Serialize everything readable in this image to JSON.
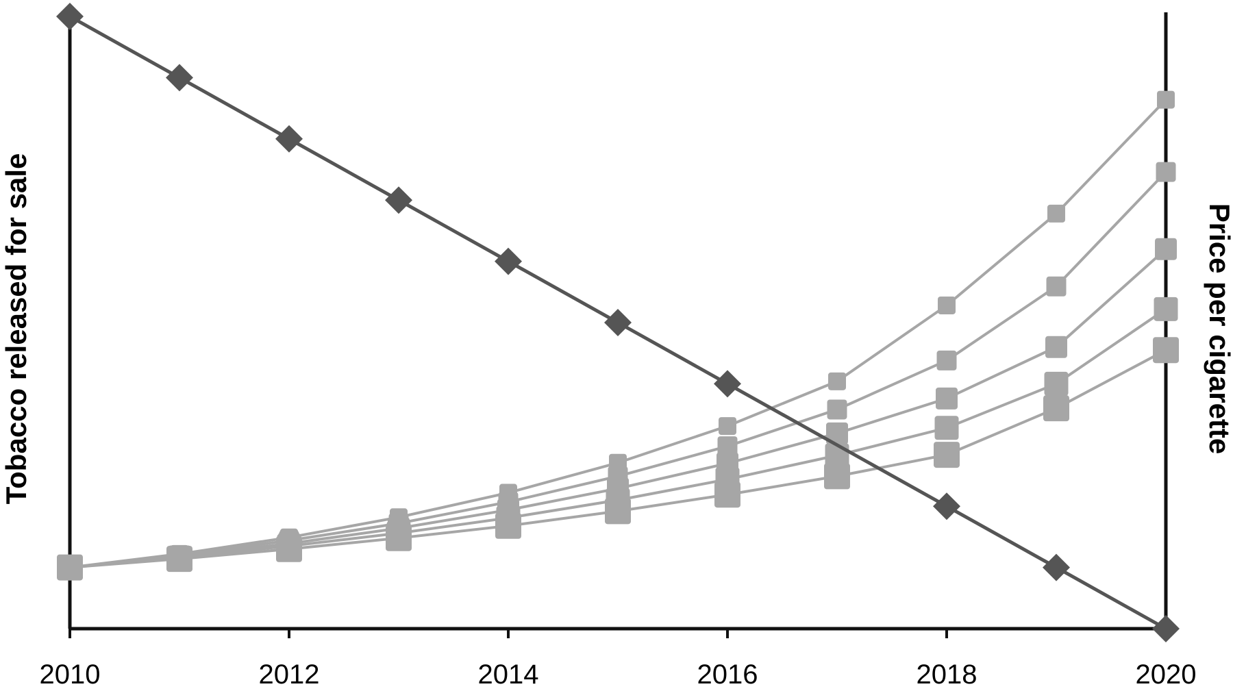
{
  "chart_data": {
    "type": "line",
    "title": "",
    "xlabel": "",
    "ylabel": "Tobacco released for sale",
    "y2label": "Price per cigarette",
    "xlim": [
      2010,
      2020
    ],
    "x_ticks": [
      2010,
      2012,
      2014,
      2016,
      2018,
      2020
    ],
    "grid": false,
    "legend": "none",
    "colors": {
      "tobacco": "#555555",
      "price": "#a6a6a6",
      "axis": "#111111"
    },
    "tobacco_series": {
      "marker": "diamond",
      "axis": "left",
      "ylim": [
        0,
        100
      ],
      "x": [
        2010,
        2011,
        2012,
        2013,
        2014,
        2015,
        2016,
        2018,
        2019,
        2020
      ],
      "values": [
        100,
        90,
        80,
        70,
        60,
        50,
        40,
        20,
        10,
        0
      ]
    },
    "price_series": [
      {
        "marker": "square",
        "axis": "right",
        "ylim": [
          0,
          100
        ],
        "x": [
          2010,
          2011,
          2012,
          2013,
          2014,
          2015,
          2016,
          2017,
          2018,
          2019,
          2020
        ],
        "values": [
          10,
          12.2,
          14.9,
          18.2,
          22.2,
          27.1,
          33.1,
          40.4,
          52.8,
          67.8,
          86.4
        ]
      },
      {
        "marker": "square",
        "axis": "right",
        "ylim": [
          0,
          100
        ],
        "x": [
          2010,
          2011,
          2012,
          2013,
          2014,
          2015,
          2016,
          2017,
          2018,
          2019,
          2020
        ],
        "values": [
          10,
          12,
          14.4,
          17.2,
          20.7,
          24.9,
          29.8,
          35.8,
          43.8,
          55.9,
          74.6
        ]
      },
      {
        "marker": "square",
        "axis": "right",
        "ylim": [
          0,
          100
        ],
        "x": [
          2010,
          2011,
          2012,
          2013,
          2014,
          2015,
          2016,
          2017,
          2018,
          2019,
          2020
        ],
        "values": [
          10,
          11.8,
          13.9,
          16.4,
          19.4,
          22.9,
          27,
          31.9,
          37.6,
          46,
          62
        ]
      },
      {
        "marker": "square",
        "axis": "right",
        "ylim": [
          0,
          100
        ],
        "x": [
          2010,
          2011,
          2012,
          2013,
          2014,
          2015,
          2016,
          2017,
          2018,
          2019,
          2020
        ],
        "values": [
          10,
          11.6,
          13.5,
          15.6,
          18.1,
          21,
          24.4,
          28.3,
          32.8,
          40,
          52.2
        ]
      },
      {
        "marker": "square",
        "axis": "right",
        "ylim": [
          0,
          100
        ],
        "x": [
          2010,
          2011,
          2012,
          2013,
          2014,
          2015,
          2016,
          2017,
          2018,
          2019,
          2020
        ],
        "values": [
          10,
          11.4,
          13,
          14.8,
          16.8,
          19.2,
          21.9,
          24.9,
          28.4,
          36,
          45.5
        ]
      }
    ]
  }
}
